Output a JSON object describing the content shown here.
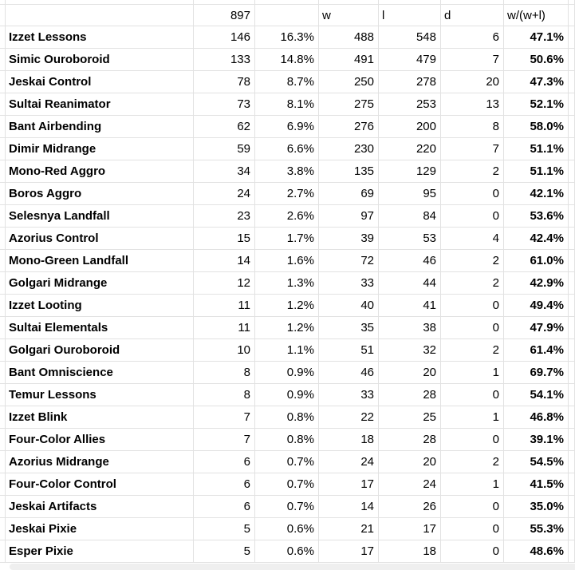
{
  "table": {
    "header": {
      "name": "",
      "count": "897",
      "pct": "",
      "w": "w",
      "l": "l",
      "d": "d",
      "winrate": "w/(w+l)"
    },
    "rows": [
      {
        "name": "Izzet Lessons",
        "count": "146",
        "pct": "16.3%",
        "w": "488",
        "l": "548",
        "d": "6",
        "winrate": "47.1%"
      },
      {
        "name": "Simic Ouroboroid",
        "count": "133",
        "pct": "14.8%",
        "w": "491",
        "l": "479",
        "d": "7",
        "winrate": "50.6%"
      },
      {
        "name": "Jeskai Control",
        "count": "78",
        "pct": "8.7%",
        "w": "250",
        "l": "278",
        "d": "20",
        "winrate": "47.3%"
      },
      {
        "name": "Sultai Reanimator",
        "count": "73",
        "pct": "8.1%",
        "w": "275",
        "l": "253",
        "d": "13",
        "winrate": "52.1%"
      },
      {
        "name": "Bant Airbending",
        "count": "62",
        "pct": "6.9%",
        "w": "276",
        "l": "200",
        "d": "8",
        "winrate": "58.0%"
      },
      {
        "name": "Dimir Midrange",
        "count": "59",
        "pct": "6.6%",
        "w": "230",
        "l": "220",
        "d": "7",
        "winrate": "51.1%"
      },
      {
        "name": "Mono-Red Aggro",
        "count": "34",
        "pct": "3.8%",
        "w": "135",
        "l": "129",
        "d": "2",
        "winrate": "51.1%"
      },
      {
        "name": "Boros Aggro",
        "count": "24",
        "pct": "2.7%",
        "w": "69",
        "l": "95",
        "d": "0",
        "winrate": "42.1%"
      },
      {
        "name": "Selesnya Landfall",
        "count": "23",
        "pct": "2.6%",
        "w": "97",
        "l": "84",
        "d": "0",
        "winrate": "53.6%"
      },
      {
        "name": "Azorius Control",
        "count": "15",
        "pct": "1.7%",
        "w": "39",
        "l": "53",
        "d": "4",
        "winrate": "42.4%"
      },
      {
        "name": "Mono-Green Landfall",
        "count": "14",
        "pct": "1.6%",
        "w": "72",
        "l": "46",
        "d": "2",
        "winrate": "61.0%"
      },
      {
        "name": "Golgari Midrange",
        "count": "12",
        "pct": "1.3%",
        "w": "33",
        "l": "44",
        "d": "2",
        "winrate": "42.9%"
      },
      {
        "name": "Izzet Looting",
        "count": "11",
        "pct": "1.2%",
        "w": "40",
        "l": "41",
        "d": "0",
        "winrate": "49.4%"
      },
      {
        "name": "Sultai Elementals",
        "count": "11",
        "pct": "1.2%",
        "w": "35",
        "l": "38",
        "d": "0",
        "winrate": "47.9%"
      },
      {
        "name": "Golgari Ouroboroid",
        "count": "10",
        "pct": "1.1%",
        "w": "51",
        "l": "32",
        "d": "2",
        "winrate": "61.4%"
      },
      {
        "name": "Bant Omniscience",
        "count": "8",
        "pct": "0.9%",
        "w": "46",
        "l": "20",
        "d": "1",
        "winrate": "69.7%"
      },
      {
        "name": "Temur Lessons",
        "count": "8",
        "pct": "0.9%",
        "w": "33",
        "l": "28",
        "d": "0",
        "winrate": "54.1%"
      },
      {
        "name": "Izzet Blink",
        "count": "7",
        "pct": "0.8%",
        "w": "22",
        "l": "25",
        "d": "1",
        "winrate": "46.8%"
      },
      {
        "name": "Four-Color Allies",
        "count": "7",
        "pct": "0.8%",
        "w": "18",
        "l": "28",
        "d": "0",
        "winrate": "39.1%"
      },
      {
        "name": "Azorius Midrange",
        "count": "6",
        "pct": "0.7%",
        "w": "24",
        "l": "20",
        "d": "2",
        "winrate": "54.5%"
      },
      {
        "name": "Four-Color Control",
        "count": "6",
        "pct": "0.7%",
        "w": "17",
        "l": "24",
        "d": "1",
        "winrate": "41.5%"
      },
      {
        "name": "Jeskai Artifacts",
        "count": "6",
        "pct": "0.7%",
        "w": "14",
        "l": "26",
        "d": "0",
        "winrate": "35.0%"
      },
      {
        "name": "Jeskai Pixie",
        "count": "5",
        "pct": "0.6%",
        "w": "21",
        "l": "17",
        "d": "0",
        "winrate": "55.3%"
      },
      {
        "name": "Esper Pixie",
        "count": "5",
        "pct": "0.6%",
        "w": "17",
        "l": "18",
        "d": "0",
        "winrate": "48.6%"
      }
    ]
  },
  "colors": {
    "gridline": "#e2e2e2",
    "text": "#000000",
    "background": "#ffffff",
    "scrollbar_track": "#efefef"
  }
}
